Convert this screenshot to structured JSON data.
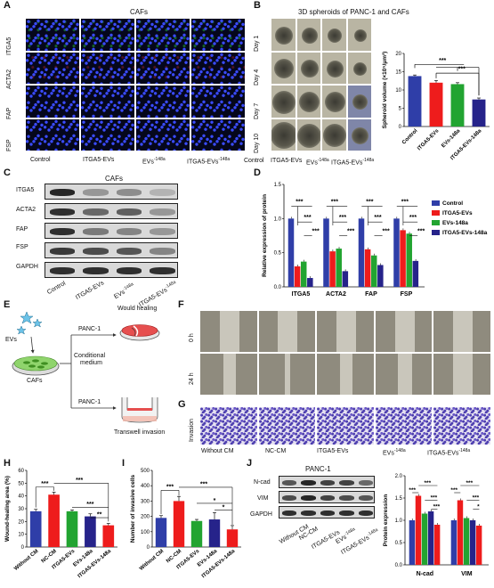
{
  "panel_labels": [
    "A",
    "B",
    "C",
    "D",
    "E",
    "F",
    "G",
    "H",
    "I",
    "J"
  ],
  "groups": [
    "Control",
    "ITGA5-EVs",
    "EVs-148a",
    "ITGA5-EVs-148a"
  ],
  "panelA": {
    "title": "CAFs",
    "row_labels": [
      "ITGA5",
      "ACTA2",
      "FAP",
      "FSP"
    ],
    "col_labels": [
      "Control",
      "ITGA5-EVs",
      "EVs",
      "-148a",
      "ITGA5-EVs",
      "-148a"
    ]
  },
  "panelB": {
    "title": "3D spheroids of PANC-1 and CAFs",
    "row_labels": [
      "Day 1",
      "Day 4",
      "Day 7",
      "Day 10"
    ]
  },
  "panelC": {
    "title": "CAFs",
    "row_labels": [
      "ITGA5",
      "ACTA2",
      "FAP",
      "FSP",
      "GAPDH"
    ]
  },
  "panelE": {
    "evs": "EVs",
    "cafs": "CAFs",
    "conditional": "Conditional",
    "medium": "medium",
    "panc1_top": "PANC-1",
    "panc1_bottom": "PANC-1",
    "wound": "Would healing",
    "transwell": "Transwell invasion"
  },
  "panelF": {
    "row_labels": [
      "0 h",
      "24 h"
    ]
  },
  "panelG": {
    "row_label": "Invasion",
    "col_labels": [
      "Without CM",
      "NC-CM",
      "ITGA5-EVs",
      "EVs",
      "-148a",
      "ITGA5-EVs",
      "-148a"
    ]
  },
  "panelJ": {
    "title": "PANC-1",
    "row_labels": [
      "N-cad",
      "VIM",
      "GAPDH"
    ]
  },
  "sup": "-148a",
  "significance": [
    "***",
    "**",
    "*"
  ],
  "chart_data": [
    {
      "id": "B",
      "type": "bar",
      "categories": [
        "Control",
        "ITGA5-EVs",
        "EVs-148a",
        "ITGA5-EVs-148a"
      ],
      "values": [
        13.8,
        12.0,
        11.6,
        7.4
      ],
      "errors": [
        0.3,
        0.6,
        0.4,
        0.4
      ],
      "colors": [
        "#2f3ea8",
        "#ee1c1c",
        "#22a431",
        "#26238a"
      ],
      "ylabel": "Spheroid volume (×10⁵/μm³)",
      "ylim": [
        0,
        20
      ],
      "yticks": [
        "0",
        "5",
        "10",
        "15",
        "20"
      ],
      "annotations": [
        "***",
        "***"
      ]
    },
    {
      "id": "D",
      "type": "bar",
      "categories": [
        "ITGA5",
        "ACTA2",
        "FAP",
        "FSP"
      ],
      "series": [
        {
          "name": "Control",
          "values": [
            1.0,
            1.0,
            1.0,
            1.0
          ],
          "color": "#2f3ea8"
        },
        {
          "name": "ITGA5-EVs",
          "values": [
            0.3,
            0.52,
            0.55,
            0.83
          ],
          "color": "#ee1c1c"
        },
        {
          "name": "EVs-148a",
          "values": [
            0.37,
            0.56,
            0.46,
            0.78
          ],
          "color": "#22a431"
        },
        {
          "name": "ITGA5-EVs-148a",
          "values": [
            0.13,
            0.23,
            0.32,
            0.38
          ],
          "color": "#26238a"
        }
      ],
      "ylabel": "Relative expression of protein",
      "ylim": [
        0,
        1.5
      ],
      "yticks": [
        "0.0",
        "0.5",
        "1.0",
        "1.5"
      ],
      "legend": "right"
    },
    {
      "id": "H",
      "type": "bar",
      "categories": [
        "Without CM",
        "NC-CM",
        "ITGA5-EVs",
        "EVs-148a",
        "ITGA5-EVs-148a"
      ],
      "values": [
        28,
        41,
        28,
        24,
        17
      ],
      "errors": [
        1.5,
        2,
        1,
        2,
        1.5
      ],
      "colors": [
        "#2f3ea8",
        "#ee1c1c",
        "#22a431",
        "#26238a",
        "#ee1c1c"
      ],
      "ylabel": "Wound-healing area (%)",
      "ylim": [
        0,
        60
      ],
      "yticks": [
        "0",
        "10",
        "20",
        "30",
        "40",
        "50",
        "60"
      ],
      "annotations": [
        "***",
        "***",
        "***",
        "**"
      ]
    },
    {
      "id": "I",
      "type": "bar",
      "categories": [
        "Without CM",
        "NC-CM",
        "ITGA5-EVs",
        "EVs-148a",
        "ITGA5-EVs-148a"
      ],
      "values": [
        190,
        300,
        170,
        180,
        115
      ],
      "errors": [
        15,
        30,
        10,
        45,
        25
      ],
      "colors": [
        "#2f3ea8",
        "#ee1c1c",
        "#22a431",
        "#26238a",
        "#ee1c1c"
      ],
      "ylabel": "Number of invasive cells",
      "ylim": [
        0,
        500
      ],
      "yticks": [
        "0",
        "100",
        "200",
        "300",
        "400",
        "500"
      ],
      "annotations": [
        "***",
        "***",
        "*",
        "*"
      ]
    },
    {
      "id": "J",
      "type": "bar",
      "categories": [
        "N-cad",
        "VIM"
      ],
      "series": [
        {
          "name": "Without CM",
          "values": [
            1.0,
            1.0
          ],
          "color": "#2f3ea8"
        },
        {
          "name": "NC-CM",
          "values": [
            1.55,
            1.45
          ],
          "color": "#ee1c1c"
        },
        {
          "name": "ITGA5-EVs",
          "values": [
            1.15,
            1.05
          ],
          "color": "#22a431"
        },
        {
          "name": "EVs-148a",
          "values": [
            1.2,
            1.0
          ],
          "color": "#26238a"
        },
        {
          "name": "ITGA5-EVs-148a",
          "values": [
            0.9,
            0.88
          ],
          "color": "#ee1c1c"
        }
      ],
      "ylabel": "Protein expression",
      "ylim": [
        0,
        2.0
      ],
      "yticks": [
        "0.0",
        "0.5",
        "1.0",
        "1.5",
        "2.0"
      ]
    }
  ]
}
